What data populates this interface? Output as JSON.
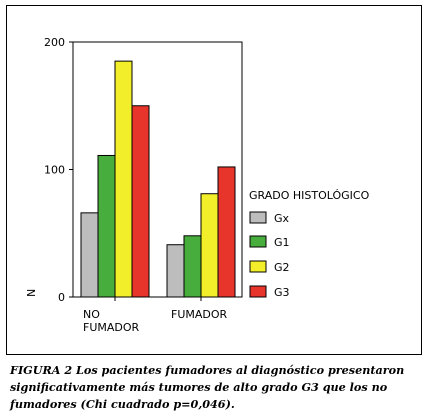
{
  "chart_data": {
    "type": "bar",
    "categories": [
      "NO FUMADOR",
      "FUMADOR"
    ],
    "category_lines": [
      [
        "NO",
        "FUMADOR"
      ],
      [
        "FUMADOR"
      ]
    ],
    "series": [
      {
        "name": "Gx",
        "values": [
          66,
          41
        ],
        "color": "#bdbdbd"
      },
      {
        "name": "G1",
        "values": [
          111,
          48
        ],
        "color": "#47ad3c"
      },
      {
        "name": "G2",
        "values": [
          185,
          81
        ],
        "color": "#f2ef2a"
      },
      {
        "name": "G3",
        "values": [
          150,
          102
        ],
        "color": "#e8352b"
      }
    ],
    "title": "",
    "xlabel": "",
    "ylabel": "N",
    "ylim": [
      0,
      200
    ],
    "yticks": [
      0,
      100,
      200
    ],
    "grid": false,
    "legend": {
      "title": "GRADO HISTOLÓGICO",
      "position": "right"
    }
  },
  "caption": "FIGURA 2 Los pacientes fumadores al diagnóstico presentaron significativamente más tumores de alto grado G3 que los no fumadores (Chi cuadrado p=0,046)."
}
